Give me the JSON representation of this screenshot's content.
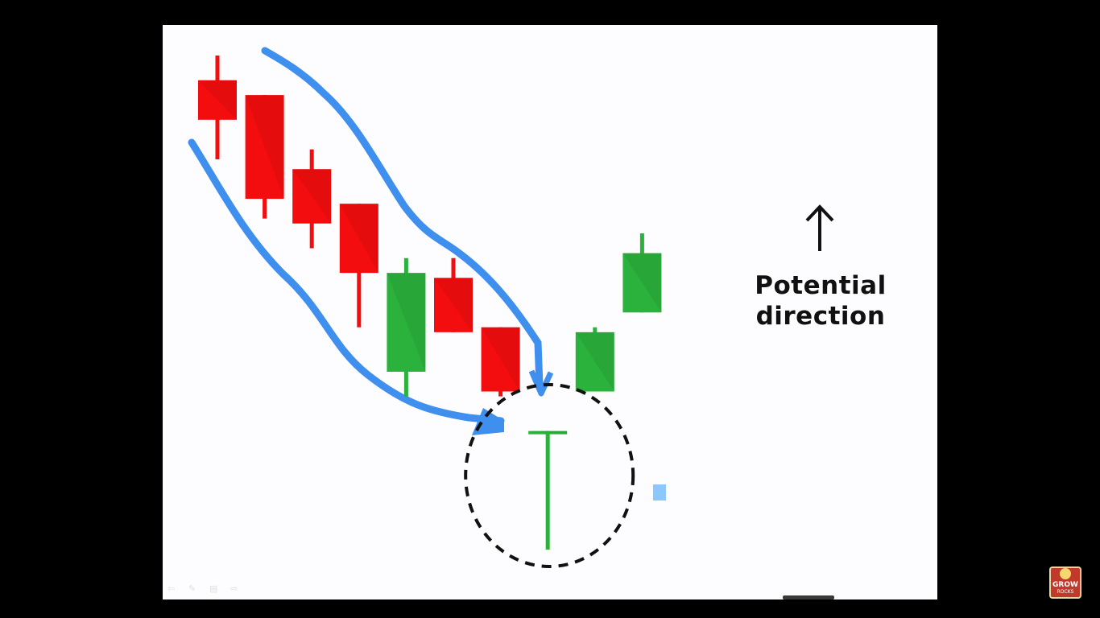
{
  "chart_data": {
    "type": "candlestick",
    "title": "",
    "xlabel": "",
    "ylabel": "",
    "y_axis_shown": false,
    "x_axis_shown": false,
    "grid": false,
    "candles": [
      {
        "direction": "bearish",
        "high": 100,
        "open": 95,
        "close": 87,
        "low": 79
      },
      {
        "direction": "bearish",
        "high": 92,
        "open": 92,
        "close": 71,
        "low": 67
      },
      {
        "direction": "bearish",
        "high": 81,
        "open": 77,
        "close": 66,
        "low": 61
      },
      {
        "direction": "bearish",
        "high": 70,
        "open": 70,
        "close": 56,
        "low": 45
      },
      {
        "direction": "bullish",
        "high": 59,
        "open": 36,
        "close": 56,
        "low": 31
      },
      {
        "direction": "bearish",
        "high": 59,
        "open": 55,
        "close": 44,
        "low": 44
      },
      {
        "direction": "bearish",
        "high": 45,
        "open": 45,
        "close": 32,
        "low": 31
      },
      {
        "direction": "bullish",
        "high": 24,
        "open": 24,
        "close": 24,
        "low": 0
      },
      {
        "direction": "bullish",
        "high": 45,
        "open": 32,
        "close": 44,
        "low": 32
      },
      {
        "direction": "bullish",
        "high": 64,
        "open": 48,
        "close": 60,
        "low": 48
      }
    ],
    "colors": {
      "bullish": "#2bb23c",
      "bearish": "#f40d0f",
      "annotation": "#3f8fee",
      "circle": "#111111"
    },
    "annotations": [
      "downtrend channel drawn in blue around candles 1-7",
      "dashed circle highlighting candle 8 (hammer)"
    ]
  },
  "side_annotation": {
    "arrow_icon": "up-arrow",
    "label_line1": "Potential",
    "label_line2": "direction"
  },
  "logo": {
    "text": "GROW",
    "sub": "ROCKS"
  }
}
